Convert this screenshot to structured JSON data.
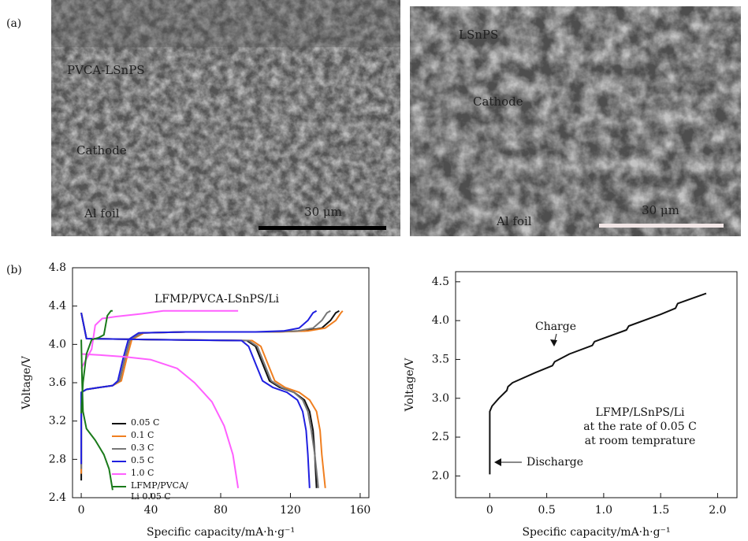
{
  "panel_labels": [
    "(a)",
    "(b)"
  ],
  "images": [
    {
      "labels": [
        "PVCA-LSnPS",
        "Cathode",
        "Al foil"
      ],
      "scale_bar": "30 μm"
    },
    {
      "labels": [
        "LSnPS",
        "Cathode",
        "Al foil"
      ],
      "scale_bar": "30 μm"
    }
  ],
  "chart_data": [
    {
      "type": "line",
      "title": "LFMP/PVCA-LSnPS/Li",
      "x_label": "Specific capacity/mA·h·g⁻¹",
      "y_label": "Voltage/V",
      "xlim": [
        -5,
        165
      ],
      "ylim": [
        2.4,
        4.8
      ],
      "xticks": [
        0,
        40,
        80,
        120,
        160
      ],
      "yticks": [
        2.4,
        2.8,
        3.2,
        3.6,
        {
          "value": 4.0,
          "label": "4.0"
        },
        4.4,
        4.8
      ],
      "legend": "lower left",
      "series": [
        {
          "name": "0.05 C",
          "color": "#111111",
          "x": [
            0,
            0,
            3,
            10,
            18,
            22,
            25,
            28,
            35,
            60,
            110,
            128,
            138,
            143,
            146,
            148,
            null,
            0,
            3,
            40,
            95,
            100,
            104,
            108,
            114,
            122,
            128,
            131,
            133,
            134,
            135
          ],
          "values": [
            2.58,
            3.5,
            3.53,
            3.55,
            3.57,
            3.62,
            3.85,
            4.05,
            4.12,
            4.13,
            4.13,
            4.14,
            4.17,
            4.25,
            4.33,
            4.35,
            null,
            4.33,
            4.06,
            4.05,
            4.04,
            3.98,
            3.8,
            3.62,
            3.55,
            3.5,
            3.42,
            3.3,
            3.1,
            2.85,
            2.5
          ]
        },
        {
          "name": "0.1 C",
          "color": "#f07f20",
          "x": [
            0,
            0,
            3,
            10,
            18,
            23,
            26,
            29,
            36,
            60,
            112,
            130,
            140,
            146,
            149,
            150,
            null,
            0,
            3,
            40,
            98,
            103,
            107,
            111,
            117,
            125,
            131,
            135,
            137,
            138,
            140
          ],
          "values": [
            2.65,
            3.5,
            3.53,
            3.55,
            3.57,
            3.62,
            3.85,
            4.05,
            4.12,
            4.13,
            4.13,
            4.14,
            4.17,
            4.25,
            4.33,
            4.35,
            null,
            4.33,
            4.06,
            4.05,
            4.04,
            3.98,
            3.8,
            3.62,
            3.55,
            3.5,
            3.42,
            3.3,
            3.1,
            2.85,
            2.5
          ]
        },
        {
          "name": "0.3 C",
          "color": "#777777",
          "x": [
            0,
            0,
            3,
            10,
            18,
            22,
            25,
            28,
            35,
            60,
            108,
            124,
            133,
            138,
            141,
            143,
            null,
            0,
            3,
            40,
            96,
            101,
            105,
            109,
            115,
            122,
            127,
            130,
            132,
            134,
            136
          ],
          "values": [
            2.7,
            3.5,
            3.53,
            3.55,
            3.57,
            3.62,
            3.85,
            4.05,
            4.12,
            4.13,
            4.13,
            4.14,
            4.17,
            4.25,
            4.33,
            4.35,
            null,
            4.33,
            4.06,
            4.05,
            4.04,
            3.98,
            3.8,
            3.62,
            3.55,
            3.5,
            3.42,
            3.3,
            3.1,
            2.85,
            2.5
          ]
        },
        {
          "name": "0.5 C",
          "color": "#1f1fe0",
          "x": [
            0,
            0,
            3,
            10,
            18,
            21,
            24,
            27,
            33,
            60,
            100,
            116,
            125,
            130,
            133,
            135,
            null,
            0,
            3,
            40,
            92,
            96,
            100,
            104,
            110,
            118,
            124,
            127,
            129,
            130,
            131
          ],
          "values": [
            2.75,
            3.5,
            3.53,
            3.55,
            3.57,
            3.62,
            3.85,
            4.05,
            4.12,
            4.13,
            4.13,
            4.14,
            4.17,
            4.25,
            4.33,
            4.35,
            null,
            4.33,
            4.06,
            4.05,
            4.04,
            3.98,
            3.8,
            3.62,
            3.55,
            3.5,
            3.42,
            3.3,
            3.1,
            2.85,
            2.5
          ]
        },
        {
          "name": "1.0 C",
          "color": "#ff5fff",
          "x": [
            0,
            3,
            6,
            8,
            12,
            20,
            35,
            47,
            90,
            null,
            0,
            10,
            25,
            40,
            55,
            65,
            75,
            82,
            87,
            90
          ],
          "values": [
            3.75,
            3.85,
            3.95,
            4.2,
            4.27,
            4.29,
            4.32,
            4.35,
            4.35,
            null,
            3.9,
            3.89,
            3.87,
            3.84,
            3.75,
            3.6,
            3.4,
            3.15,
            2.85,
            2.5
          ]
        },
        {
          "name": "LFMP/PVCA/ Li 0.05 C",
          "color": "#1a7a1a",
          "x": [
            0,
            1,
            3,
            6,
            10,
            13,
            15,
            17,
            18,
            null,
            0,
            0.5,
            1,
            3,
            8,
            13,
            16,
            18
          ],
          "values": [
            3.28,
            3.6,
            3.9,
            4.05,
            4.07,
            4.1,
            4.3,
            4.35,
            4.35,
            null,
            4.05,
            3.6,
            3.3,
            3.12,
            3.0,
            2.85,
            2.7,
            2.48
          ]
        }
      ]
    },
    {
      "type": "line",
      "x_label": "Specific capacity/mA·h·g⁻¹",
      "y_label": "Voltage/V",
      "xlim": [
        -0.3,
        2.17
      ],
      "ylim": [
        1.72,
        4.63
      ],
      "xticks": [
        0,
        0.5,
        {
          "value": 1.0,
          "label": "1.0"
        },
        1.5,
        {
          "value": 2.0,
          "label": "2.0"
        }
      ],
      "yticks": [
        {
          "value": 2.0,
          "label": "2.0"
        },
        2.5,
        {
          "value": 3.0,
          "label": "3.0"
        },
        3.5,
        {
          "value": 4.0,
          "label": "4.0"
        },
        4.5
      ],
      "annotations": [
        "Charge",
        "Discharge",
        "LFMP/LSnPS/Li",
        "at the rate of 0.05 C",
        "at room temprature"
      ],
      "series": [
        {
          "color": "#111111",
          "x": [
            0,
            0,
            0.02,
            0.08,
            0.15,
            0.16,
            0.2,
            0.4,
            0.55,
            0.57,
            0.7,
            0.9,
            0.92,
            1.2,
            1.22,
            1.5,
            1.63,
            1.65,
            1.9
          ],
          "values": [
            2.02,
            2.83,
            2.9,
            3.0,
            3.1,
            3.15,
            3.2,
            3.33,
            3.42,
            3.47,
            3.57,
            3.68,
            3.73,
            3.88,
            3.93,
            4.08,
            4.16,
            4.22,
            4.35
          ]
        }
      ]
    }
  ]
}
